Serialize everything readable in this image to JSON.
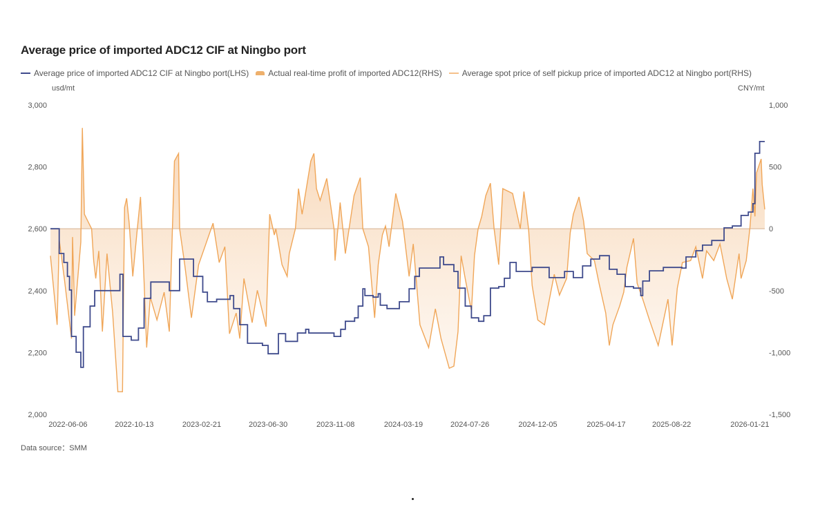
{
  "chart_data": {
    "type": "line",
    "title": "Average price of imported ADC12 CIF at Ningbo port",
    "left_unit": "usd/mt",
    "right_unit": "CNY/mt",
    "source": "Data source：SMM",
    "x_range": [
      "2022-05-03",
      "2026-02-19"
    ],
    "x_ticks": [
      "2022-06-06",
      "2022-10-13",
      "2023-02-21",
      "2023-06-30",
      "2023-11-08",
      "2024-03-19",
      "2024-07-26",
      "2024-12-05",
      "2025-04-17",
      "2025-08-22",
      "2026-01-21"
    ],
    "y_left": {
      "range": [
        2000,
        3000
      ],
      "ticks": [
        3000,
        2800,
        2600,
        2400,
        2200,
        2000
      ],
      "tick_labels": [
        "3,000",
        "2,800",
        "2,600",
        "2,400",
        "2,200",
        "2,000"
      ]
    },
    "y_right": {
      "range": [
        -1500,
        1000
      ],
      "ticks": [
        1000,
        500,
        0,
        -500,
        -1000,
        -1500
      ],
      "tick_labels": [
        "1,000",
        "500",
        "0",
        "-500",
        "-1,000",
        "-1,500"
      ]
    },
    "grid": false,
    "legend_position": "top-left",
    "colors": {
      "cif": "#3e4a8c",
      "profit_line": "#f0a658",
      "profit_fill": "#f6cfa8",
      "spot": "#f5c08a",
      "zero_line": "#d9b89a"
    },
    "series": [
      {
        "name": "Average price of imported ADC12 CIF at Ningbo port(LHS)",
        "axis": "left",
        "style": "line",
        "points": [
          [
            "2022-05-03",
            2600
          ],
          [
            "2022-05-16",
            2600
          ],
          [
            "2022-05-20",
            2520
          ],
          [
            "2022-05-29",
            2491
          ],
          [
            "2022-06-05",
            2446
          ],
          [
            "2022-06-09",
            2402
          ],
          [
            "2022-06-13",
            2252
          ],
          [
            "2022-06-22",
            2201
          ],
          [
            "2022-07-01",
            2152
          ],
          [
            "2022-07-06",
            2283
          ],
          [
            "2022-07-19",
            2350
          ],
          [
            "2022-07-28",
            2400
          ],
          [
            "2022-09-11",
            2400
          ],
          [
            "2022-09-15",
            2453
          ],
          [
            "2022-09-20",
            2453
          ],
          [
            "2022-09-21",
            2252
          ],
          [
            "2022-10-07",
            2240
          ],
          [
            "2022-10-21",
            2279
          ],
          [
            "2022-11-01",
            2375
          ],
          [
            "2022-11-14",
            2428
          ],
          [
            "2022-12-18",
            2428
          ],
          [
            "2022-12-20",
            2400
          ],
          [
            "2023-01-09",
            2502
          ],
          [
            "2023-02-01",
            2502
          ],
          [
            "2023-02-05",
            2446
          ],
          [
            "2023-02-23",
            2395
          ],
          [
            "2023-03-04",
            2364
          ],
          [
            "2023-03-22",
            2372
          ],
          [
            "2023-04-17",
            2384
          ],
          [
            "2023-04-24",
            2342
          ],
          [
            "2023-05-06",
            2290
          ],
          [
            "2023-05-21",
            2230
          ],
          [
            "2023-06-19",
            2223
          ],
          [
            "2023-06-30",
            2196
          ],
          [
            "2023-07-20",
            2261
          ],
          [
            "2023-08-03",
            2236
          ],
          [
            "2023-08-26",
            2263
          ],
          [
            "2023-09-11",
            2275
          ],
          [
            "2023-09-17",
            2263
          ],
          [
            "2023-10-18",
            2263
          ],
          [
            "2023-11-05",
            2252
          ],
          [
            "2023-11-18",
            2275
          ],
          [
            "2023-11-27",
            2301
          ],
          [
            "2023-12-15",
            2312
          ],
          [
            "2023-12-22",
            2350
          ],
          [
            "2023-12-31",
            2406
          ],
          [
            "2024-01-04",
            2384
          ],
          [
            "2024-01-20",
            2379
          ],
          [
            "2024-01-30",
            2390
          ],
          [
            "2024-02-03",
            2353
          ],
          [
            "2024-02-16",
            2342
          ],
          [
            "2024-03-07",
            2342
          ],
          [
            "2024-03-11",
            2364
          ],
          [
            "2024-03-30",
            2406
          ],
          [
            "2024-04-10",
            2446
          ],
          [
            "2024-04-19",
            2473
          ],
          [
            "2024-05-16",
            2473
          ],
          [
            "2024-05-29",
            2509
          ],
          [
            "2024-06-05",
            2484
          ],
          [
            "2024-06-25",
            2462
          ],
          [
            "2024-07-03",
            2408
          ],
          [
            "2024-07-17",
            2350
          ],
          [
            "2024-07-29",
            2312
          ],
          [
            "2024-08-12",
            2301
          ],
          [
            "2024-08-22",
            2319
          ],
          [
            "2024-09-04",
            2408
          ],
          [
            "2024-09-20",
            2413
          ],
          [
            "2024-10-01",
            2440
          ],
          [
            "2024-10-12",
            2491
          ],
          [
            "2024-10-24",
            2462
          ],
          [
            "2024-11-08",
            2462
          ],
          [
            "2024-11-24",
            2475
          ],
          [
            "2024-12-10",
            2475
          ],
          [
            "2024-12-27",
            2442
          ],
          [
            "2025-01-26",
            2462
          ],
          [
            "2025-02-12",
            2442
          ],
          [
            "2025-03-02",
            2480
          ],
          [
            "2025-03-18",
            2502
          ],
          [
            "2025-04-04",
            2513
          ],
          [
            "2025-04-16",
            2513
          ],
          [
            "2025-04-23",
            2469
          ],
          [
            "2025-05-08",
            2453
          ],
          [
            "2025-05-24",
            2413
          ],
          [
            "2025-06-09",
            2408
          ],
          [
            "2025-06-23",
            2384
          ],
          [
            "2025-06-27",
            2431
          ],
          [
            "2025-07-10",
            2464
          ],
          [
            "2025-08-06",
            2475
          ],
          [
            "2025-09-11",
            2473
          ],
          [
            "2025-09-19",
            2509
          ],
          [
            "2025-10-08",
            2529
          ],
          [
            "2025-10-21",
            2547
          ],
          [
            "2025-11-08",
            2562
          ],
          [
            "2025-12-02",
            2603
          ],
          [
            "2025-12-18",
            2609
          ],
          [
            "2026-01-04",
            2643
          ],
          [
            "2026-01-18",
            2654
          ],
          [
            "2026-01-27",
            2681
          ],
          [
            "2026-01-31",
            2844
          ],
          [
            "2026-02-09",
            2882
          ],
          [
            "2026-02-19",
            2882
          ]
        ]
      },
      {
        "name": "Actual real-time profit of imported ADC12(RHS)",
        "axis": "right",
        "style": "area",
        "points": [
          [
            "2022-05-03",
            -218
          ],
          [
            "2022-05-16",
            -776
          ],
          [
            "2022-05-20",
            -89
          ],
          [
            "2022-05-30",
            -402
          ],
          [
            "2022-06-13",
            -887
          ],
          [
            "2022-06-15",
            -67
          ],
          [
            "2022-06-19",
            -703
          ],
          [
            "2022-07-01",
            -106
          ],
          [
            "2022-07-04",
            815
          ],
          [
            "2022-07-08",
            117
          ],
          [
            "2022-07-22",
            0
          ],
          [
            "2022-07-26",
            -257
          ],
          [
            "2022-07-30",
            -402
          ],
          [
            "2022-08-05",
            -179
          ],
          [
            "2022-08-12",
            -831
          ],
          [
            "2022-08-21",
            -201
          ],
          [
            "2022-09-01",
            -681
          ],
          [
            "2022-09-11",
            -1317
          ],
          [
            "2022-09-20",
            -1317
          ],
          [
            "2022-09-24",
            173
          ],
          [
            "2022-09-28",
            246
          ],
          [
            "2022-10-03",
            45
          ],
          [
            "2022-10-10",
            -385
          ],
          [
            "2022-10-18",
            -33
          ],
          [
            "2022-10-25",
            257
          ],
          [
            "2022-10-30",
            -218
          ],
          [
            "2022-11-06",
            -960
          ],
          [
            "2022-11-13",
            -552
          ],
          [
            "2022-11-26",
            -737
          ],
          [
            "2022-12-10",
            -513
          ],
          [
            "2022-12-20",
            -831
          ],
          [
            "2022-12-30",
            547
          ],
          [
            "2023-01-07",
            608
          ],
          [
            "2023-01-09",
            0
          ],
          [
            "2023-01-19",
            -290
          ],
          [
            "2023-02-01",
            -720
          ],
          [
            "2023-02-15",
            -290
          ],
          [
            "2023-03-01",
            -123
          ],
          [
            "2023-03-15",
            45
          ],
          [
            "2023-03-27",
            -273
          ],
          [
            "2023-04-07",
            -145
          ],
          [
            "2023-04-16",
            -848
          ],
          [
            "2023-04-29",
            -681
          ],
          [
            "2023-05-06",
            -887
          ],
          [
            "2023-05-14",
            -402
          ],
          [
            "2023-05-30",
            -759
          ],
          [
            "2023-06-09",
            -497
          ],
          [
            "2023-06-26",
            -792
          ],
          [
            "2023-07-03",
            117
          ],
          [
            "2023-07-12",
            -50
          ],
          [
            "2023-07-15",
            0
          ],
          [
            "2023-07-27",
            -290
          ],
          [
            "2023-08-06",
            -385
          ],
          [
            "2023-08-10",
            -201
          ],
          [
            "2023-08-22",
            0
          ],
          [
            "2023-08-28",
            324
          ],
          [
            "2023-09-04",
            117
          ],
          [
            "2023-09-21",
            547
          ],
          [
            "2023-09-27",
            608
          ],
          [
            "2023-10-02",
            324
          ],
          [
            "2023-10-09",
            229
          ],
          [
            "2023-10-22",
            407
          ],
          [
            "2023-11-05",
            0
          ],
          [
            "2023-11-07",
            -257
          ],
          [
            "2023-11-17",
            212
          ],
          [
            "2023-11-27",
            -201
          ],
          [
            "2023-12-14",
            268
          ],
          [
            "2023-12-26",
            413
          ],
          [
            "2023-12-31",
            0
          ],
          [
            "2024-01-11",
            -145
          ],
          [
            "2024-01-23",
            -720
          ],
          [
            "2024-01-30",
            -290
          ],
          [
            "2024-02-07",
            -50
          ],
          [
            "2024-02-13",
            22
          ],
          [
            "2024-02-20",
            -145
          ],
          [
            "2024-03-04",
            285
          ],
          [
            "2024-03-17",
            61
          ],
          [
            "2024-03-30",
            -385
          ],
          [
            "2024-04-07",
            -123
          ],
          [
            "2024-04-20",
            -776
          ],
          [
            "2024-05-07",
            -960
          ],
          [
            "2024-05-20",
            -647
          ],
          [
            "2024-05-31",
            -887
          ],
          [
            "2024-06-16",
            -1127
          ],
          [
            "2024-06-25",
            -1110
          ],
          [
            "2024-07-03",
            -831
          ],
          [
            "2024-07-09",
            -218
          ],
          [
            "2024-07-17",
            -402
          ],
          [
            "2024-07-29",
            -664
          ],
          [
            "2024-08-04",
            -218
          ],
          [
            "2024-08-11",
            0
          ],
          [
            "2024-08-18",
            100
          ],
          [
            "2024-08-26",
            268
          ],
          [
            "2024-09-04",
            368
          ],
          [
            "2024-09-11",
            0
          ],
          [
            "2024-09-20",
            -290
          ],
          [
            "2024-09-28",
            324
          ],
          [
            "2024-10-17",
            285
          ],
          [
            "2024-11-01",
            0
          ],
          [
            "2024-11-08",
            301
          ],
          [
            "2024-11-17",
            0
          ],
          [
            "2024-11-24",
            -458
          ],
          [
            "2024-12-05",
            -737
          ],
          [
            "2024-12-18",
            -776
          ],
          [
            "2024-12-31",
            -497
          ],
          [
            "2025-01-06",
            -368
          ],
          [
            "2025-01-16",
            -536
          ],
          [
            "2025-01-30",
            -402
          ],
          [
            "2025-02-06",
            -33
          ],
          [
            "2025-02-12",
            117
          ],
          [
            "2025-02-23",
            257
          ],
          [
            "2025-03-04",
            61
          ],
          [
            "2025-03-11",
            -201
          ],
          [
            "2025-03-25",
            -257
          ],
          [
            "2025-04-03",
            -441
          ],
          [
            "2025-04-16",
            -681
          ],
          [
            "2025-04-23",
            -943
          ],
          [
            "2025-04-30",
            -776
          ],
          [
            "2025-05-13",
            -625
          ],
          [
            "2025-05-21",
            -513
          ],
          [
            "2025-05-27",
            -312
          ],
          [
            "2025-06-09",
            -78
          ],
          [
            "2025-06-16",
            -441
          ],
          [
            "2025-06-27",
            -569
          ],
          [
            "2025-07-10",
            -737
          ],
          [
            "2025-07-27",
            -943
          ],
          [
            "2025-08-15",
            -569
          ],
          [
            "2025-08-23",
            -943
          ],
          [
            "2025-09-02",
            -480
          ],
          [
            "2025-09-12",
            -273
          ],
          [
            "2025-09-28",
            -257
          ],
          [
            "2025-10-08",
            -145
          ],
          [
            "2025-10-21",
            -402
          ],
          [
            "2025-10-29",
            -179
          ],
          [
            "2025-11-12",
            -257
          ],
          [
            "2025-11-24",
            -123
          ],
          [
            "2025-12-07",
            -402
          ],
          [
            "2025-12-18",
            -569
          ],
          [
            "2025-12-31",
            -201
          ],
          [
            "2026-01-04",
            -402
          ],
          [
            "2026-01-14",
            -257
          ],
          [
            "2026-01-21",
            0
          ],
          [
            "2026-01-27",
            324
          ],
          [
            "2026-01-31",
            100
          ],
          [
            "2026-02-03",
            452
          ],
          [
            "2026-02-12",
            564
          ],
          [
            "2026-02-14",
            357
          ],
          [
            "2026-02-19",
            156
          ]
        ]
      },
      {
        "name": "Average spot price of self pickup price of imported ADC12 at Ningbo port(RHS)",
        "axis": "right",
        "style": "line",
        "points": []
      }
    ]
  }
}
